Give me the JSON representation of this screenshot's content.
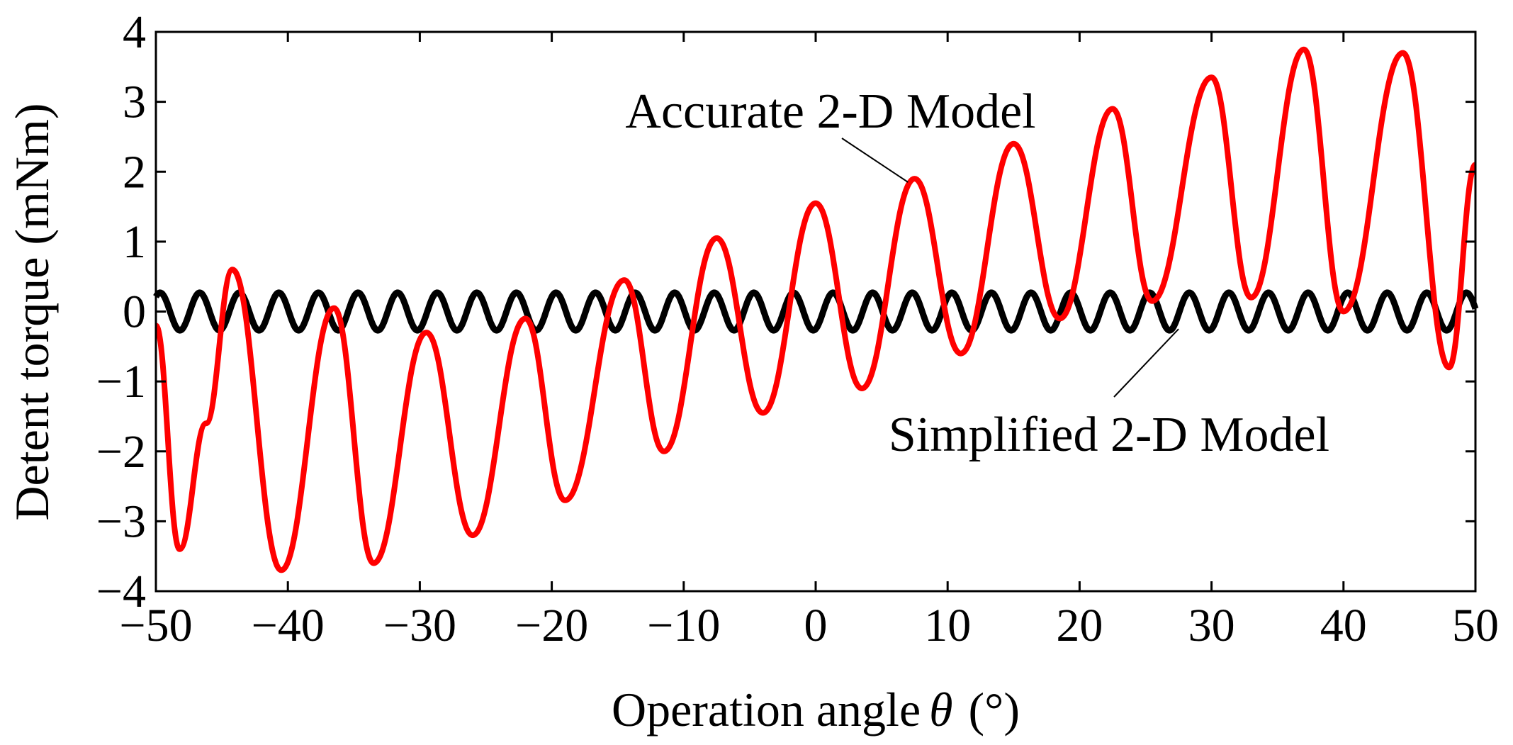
{
  "chart_data": {
    "type": "line",
    "title": "",
    "xlabel_prefix": "Operation angle",
    "xlabel_symbol": "θ",
    "xlabel_unit": "(°)",
    "ylabel": "Detent torque (mNm)",
    "xlim": [
      -50,
      50
    ],
    "ylim": [
      -4,
      4
    ],
    "x_ticks": [
      -50,
      -40,
      -30,
      -20,
      -10,
      0,
      10,
      20,
      30,
      40,
      50
    ],
    "x_tick_labels": [
      "−50",
      "−40",
      "−30",
      "−20",
      "−10",
      "0",
      "10",
      "20",
      "30",
      "40",
      "50"
    ],
    "y_ticks": [
      4,
      3,
      2,
      1,
      0,
      -1,
      -2,
      -3,
      -4
    ],
    "y_tick_labels": [
      "4",
      "3",
      "2",
      "1",
      "0",
      "−1",
      "−2",
      "−3",
      "−4"
    ],
    "grid": false,
    "series": [
      {
        "name": "Accurate 2-D Model",
        "color": "#ff0000",
        "x": [
          -50,
          -48.2,
          -46.2,
          -44.2,
          -40.5,
          -36.5,
          -33.5,
          -29.5,
          -26,
          -22,
          -19,
          -14.5,
          -11.5,
          -7.5,
          -4,
          0,
          3.5,
          7.5,
          11,
          15,
          18.5,
          22.5,
          25.5,
          30,
          33,
          37,
          40,
          44.5,
          48,
          50
        ],
        "y": [
          -0.2,
          -3.4,
          -1.6,
          0.6,
          -3.7,
          0.05,
          -3.6,
          -0.3,
          -3.2,
          -0.1,
          -2.7,
          0.45,
          -2.0,
          1.05,
          -1.45,
          1.55,
          -1.1,
          1.9,
          -0.6,
          2.4,
          -0.1,
          2.9,
          0.15,
          3.35,
          0.2,
          3.75,
          0.0,
          3.7,
          -0.8,
          2.1
        ]
      },
      {
        "name": "Simplified 2-D Model",
        "color": "#000000",
        "amplitude": 0.27,
        "period_deg": 3.0,
        "x_range": [
          -50,
          50
        ]
      }
    ],
    "annotations": [
      {
        "text": "Accurate 2-D Model",
        "points_to": [
          7.0,
          1.85
        ]
      },
      {
        "text": "Simplified 2-D Model",
        "points_to": [
          27.5,
          -0.25
        ]
      }
    ]
  }
}
